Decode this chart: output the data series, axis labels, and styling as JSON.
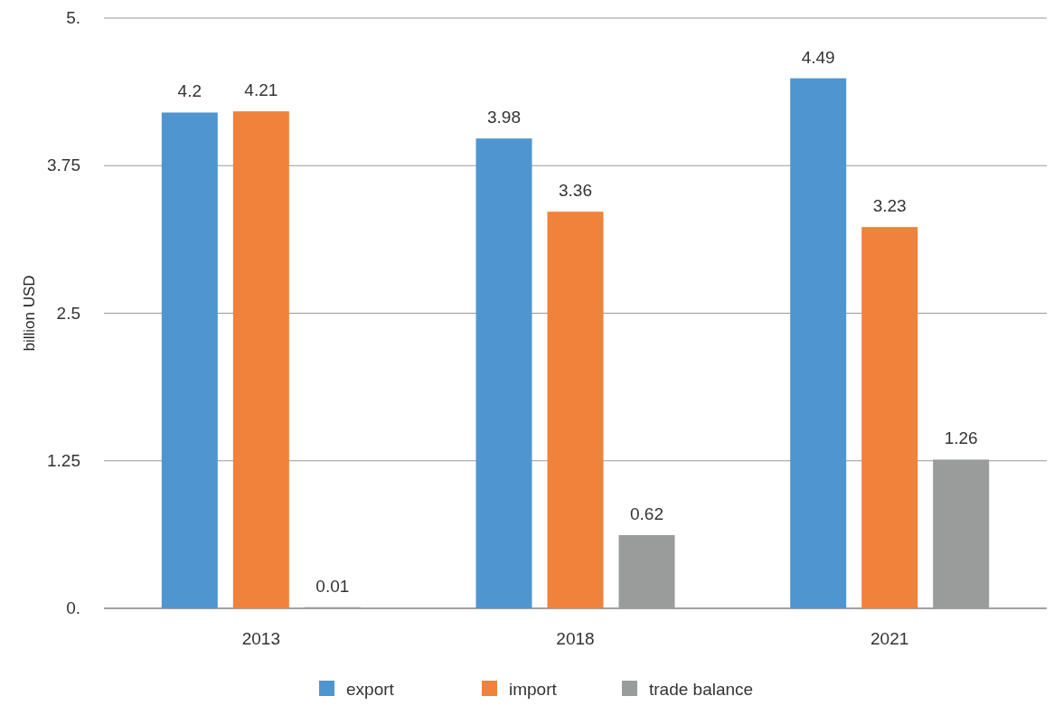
{
  "chart_data": {
    "type": "bar",
    "ylabel": "billion USD",
    "categories": [
      "2013",
      "2018",
      "2021"
    ],
    "series": [
      {
        "name": "export",
        "color": "#4f96d0",
        "values": [
          4.2,
          3.98,
          4.49
        ]
      },
      {
        "name": "import",
        "color": "#f0823c",
        "values": [
          4.21,
          3.36,
          3.23
        ]
      },
      {
        "name": "trade balance",
        "color": "#999c9b",
        "values": [
          0.01,
          0.62,
          1.26
        ]
      }
    ],
    "ylim": [
      0,
      5
    ],
    "yticks": [
      {
        "value": 0,
        "label": "0."
      },
      1.25,
      2.5,
      3.75,
      {
        "value": 5,
        "label": "5."
      }
    ],
    "grid": "y",
    "legend": "bottom",
    "data_labels": true
  }
}
